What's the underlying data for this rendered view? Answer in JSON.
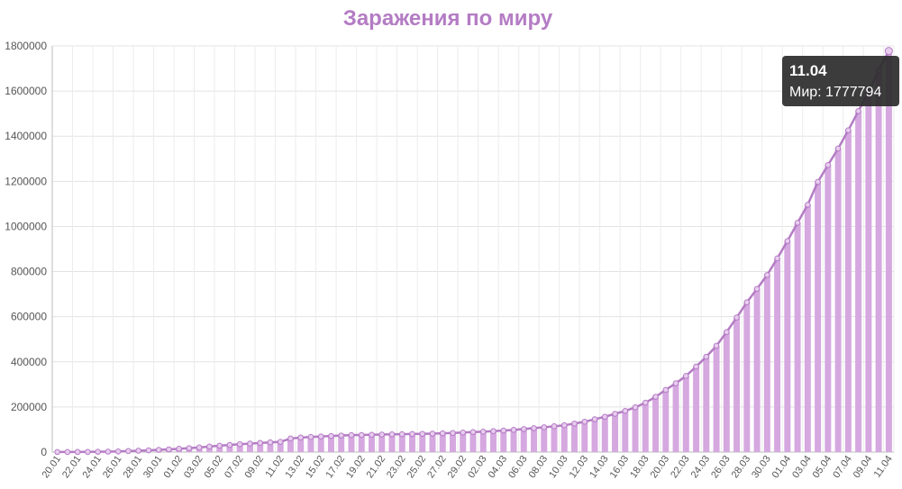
{
  "chart_data": {
    "type": "bar",
    "title": "Заражения по миру",
    "xlabel": "",
    "ylabel": "",
    "ylim": [
      0,
      1800000
    ],
    "y_ticks": [
      0,
      200000,
      400000,
      600000,
      800000,
      1000000,
      1200000,
      1400000,
      1600000,
      1800000
    ],
    "grid": true,
    "legend": "none",
    "colors": {
      "bar": "#d5a8e0",
      "line": "#b47cc4",
      "marker_fill": "#e8cdef",
      "tooltip_bg": "#2b2b2b"
    },
    "series": [
      {
        "name": "Мир",
        "values": [
          282,
          314,
          581,
          846,
          1320,
          2014,
          2798,
          4593,
          6065,
          7818,
          9826,
          11953,
          14557,
          17391,
          20630,
          24545,
          28276,
          31481,
          34886,
          37558,
          40554,
          43103,
          45171,
          60092,
          64451,
          67102,
          69197,
          71329,
          73332,
          75184,
          75700,
          76677,
          77673,
          78651,
          79205,
          80087,
          80828,
          81820,
          83112,
          84615,
          86604,
          88585,
          90443,
          93016,
          95314,
          98425,
          102050,
          106099,
          109991,
          114381,
          118948,
          126214,
          134576,
          145483,
          156653,
          169593,
          182490,
          198234,
          218815,
          244900,
          275550,
          305036,
          337459,
          378830,
          422574,
          471035,
          531865,
          596366,
          663740,
          723390,
          784716,
          858371,
          935232,
          1016128,
          1095917,
          1197405,
          1272115,
          1345101,
          1426096,
          1511104,
          1595350,
          1691719,
          1777794
        ]
      }
    ],
    "categories": [
      "20.01",
      "21.01",
      "22.01",
      "23.01",
      "24.01",
      "25.01",
      "26.01",
      "27.01",
      "28.01",
      "29.01",
      "30.01",
      "31.01",
      "01.02",
      "02.02",
      "03.02",
      "04.02",
      "05.02",
      "06.02",
      "07.02",
      "08.02",
      "09.02",
      "10.02",
      "11.02",
      "12.02",
      "13.02",
      "14.02",
      "15.02",
      "16.02",
      "17.02",
      "18.02",
      "19.02",
      "20.02",
      "21.02",
      "22.02",
      "23.02",
      "24.02",
      "25.02",
      "26.02",
      "27.02",
      "28.02",
      "29.02",
      "01.03",
      "02.03",
      "03.03",
      "04.03",
      "05.03",
      "06.03",
      "07.03",
      "08.03",
      "09.03",
      "10.03",
      "11.03",
      "12.03",
      "13.03",
      "14.03",
      "15.03",
      "16.03",
      "17.03",
      "18.03",
      "19.03",
      "20.03",
      "21.03",
      "22.03",
      "23.03",
      "24.03",
      "25.03",
      "26.03",
      "27.03",
      "28.03",
      "29.03",
      "30.03",
      "31.03",
      "01.04",
      "02.04",
      "03.04",
      "04.04",
      "05.04",
      "06.04",
      "07.04",
      "08.04",
      "09.04",
      "10.04",
      "11.04"
    ],
    "x_tick_labels": [
      "20.01",
      "22.01",
      "24.01",
      "26.01",
      "28.01",
      "30.01",
      "01.02",
      "03.02",
      "05.02",
      "07.02",
      "09.02",
      "11.02",
      "13.02",
      "15.02",
      "17.02",
      "19.02",
      "21.02",
      "23.02",
      "25.02",
      "27.02",
      "29.02",
      "02.03",
      "04.03",
      "06.03",
      "08.03",
      "10.03",
      "12.03",
      "14.03",
      "16.03",
      "18.03",
      "20.03",
      "22.03",
      "24.03",
      "26.03",
      "28.03",
      "30.03",
      "01.04",
      "03.04",
      "05.04",
      "07.04",
      "09.04",
      "11.04"
    ],
    "tooltip": {
      "date": "11.04",
      "text": "Мир: 1777794"
    }
  }
}
